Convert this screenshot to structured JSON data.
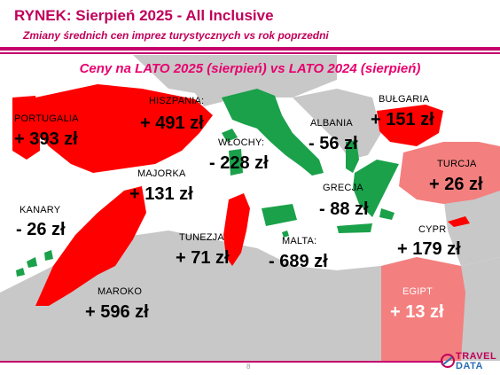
{
  "header": {
    "title": "RYNEK: Sierpień 2025 - All Inclusive",
    "subtitle": "Zmiany średnich cen imprez turystycznych vs rok poprzedni"
  },
  "map": {
    "subtitle": "Ceny na LATO 2025 (sierpień) vs  LATO 2024 (sierpień)",
    "colors": {
      "increase": "#ff0000",
      "decrease": "#1aa14a",
      "small_increase": "#f47f7f",
      "land": "#c8c8c8",
      "sea": "#ffffff"
    },
    "countries": {
      "portugalia": {
        "label": "PORTUGALIA",
        "value": "+ 393 zł"
      },
      "hiszpania": {
        "label": "HISZPANIA:",
        "value": "+ 491 zł"
      },
      "majorka": {
        "label": "MAJORKA",
        "value": "+ 131 zł"
      },
      "kanary": {
        "label": "KANARY",
        "value": "- 26 zł"
      },
      "maroko": {
        "label": "MAROKO",
        "value": "+ 596 zł"
      },
      "tunezja": {
        "label": "TUNEZJA",
        "value": "+ 71 zł"
      },
      "wlochy": {
        "label": "WŁOCHY:",
        "value": "- 228 zł"
      },
      "albania": {
        "label": "ALBANIA",
        "value": "- 56 zł"
      },
      "grecja": {
        "label": "GRECJA",
        "value": "- 88 zł"
      },
      "malta": {
        "label": "MALTA:",
        "value": "- 689 zł"
      },
      "bulgaria": {
        "label": "BUŁGARIA",
        "value": "+ 151 zł"
      },
      "turcja": {
        "label": "TURCJA",
        "value": "+ 26 zł"
      },
      "cypr": {
        "label": "CYPR",
        "value": "+ 179 zł"
      },
      "egipt": {
        "label": "EGIPT",
        "value": "+ 13 zł"
      }
    }
  },
  "footer": {
    "page_number": "8",
    "logo_top": "TRAVEL",
    "logo_bottom": "DATA"
  }
}
